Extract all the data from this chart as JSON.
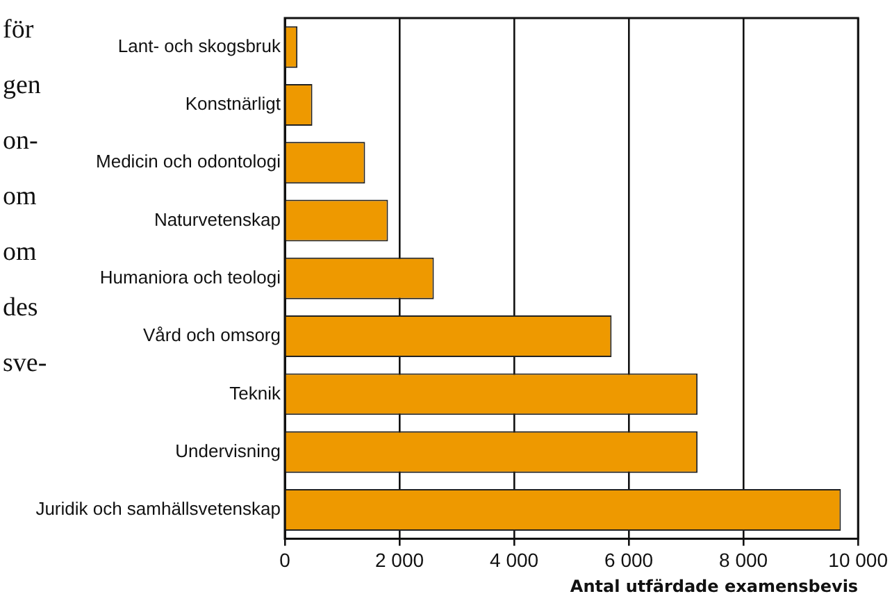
{
  "chart_data": {
    "type": "bar",
    "orientation": "horizontal",
    "categories": [
      "Lant- och skogsbruk",
      "Konstnärligt",
      "Medicin och odontologi",
      "Naturvetenskap",
      "Humaniora och teologi",
      "Vård och omsorg",
      "Teknik",
      "Undervisning",
      "Juridik och samhällsvetenskap"
    ],
    "values": [
      220,
      480,
      1400,
      1800,
      2600,
      5700,
      7200,
      7200,
      9700
    ],
    "color": "#ee9900",
    "xlabel": "Antal utfärdade examensbevis",
    "xlim": [
      0,
      10000
    ],
    "xticks": [
      0,
      {
        "value": 2000,
        "label": "2 000"
      },
      {
        "value": 4000,
        "label": "4 000"
      },
      {
        "value": 6000,
        "label": "6 000"
      },
      {
        "value": 8000,
        "label": "8 000"
      },
      {
        "value": 10000,
        "label": "10 000"
      }
    ],
    "grid": "x",
    "legend": false,
    "annotations": [
      "för",
      "gen",
      "on-",
      "om",
      "om",
      "des",
      "sve-"
    ]
  }
}
